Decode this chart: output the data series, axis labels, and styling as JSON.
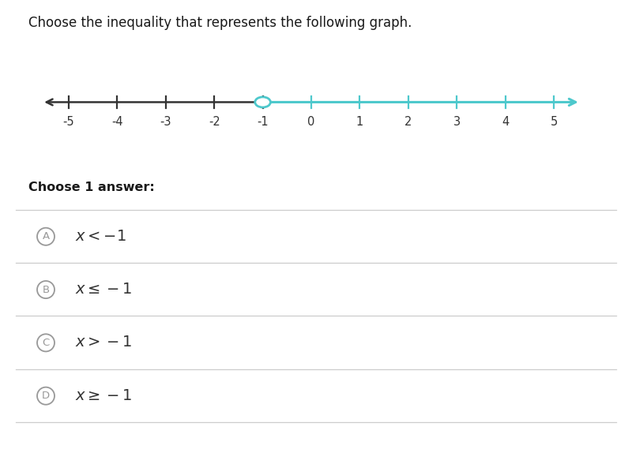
{
  "title": "Choose the inequality that represents the following graph.",
  "title_fontsize": 12,
  "background_color": "#ffffff",
  "number_line": {
    "tick_positions": [
      -5,
      -4,
      -3,
      -2,
      -1,
      0,
      1,
      2,
      3,
      4,
      5
    ],
    "open_circle_at": -1,
    "teal_color": "#4dc8cc",
    "black_color": "#333333",
    "circle_facecolor": "#ffffff"
  },
  "choose_label": "Choose 1 answer:",
  "options": [
    {
      "letter": "A",
      "text": "$x < -1$"
    },
    {
      "letter": "B",
      "text": "$x \\leq -1$"
    },
    {
      "letter": "C",
      "text": "$x > -1$"
    },
    {
      "letter": "D",
      "text": "$x \\geq -1$"
    }
  ],
  "divider_color": "#cccccc",
  "option_circle_color": "#999999",
  "option_text_color": "#333333",
  "option_fontsize": 14,
  "fig_width": 8.0,
  "fig_height": 5.69,
  "fig_dpi": 100
}
